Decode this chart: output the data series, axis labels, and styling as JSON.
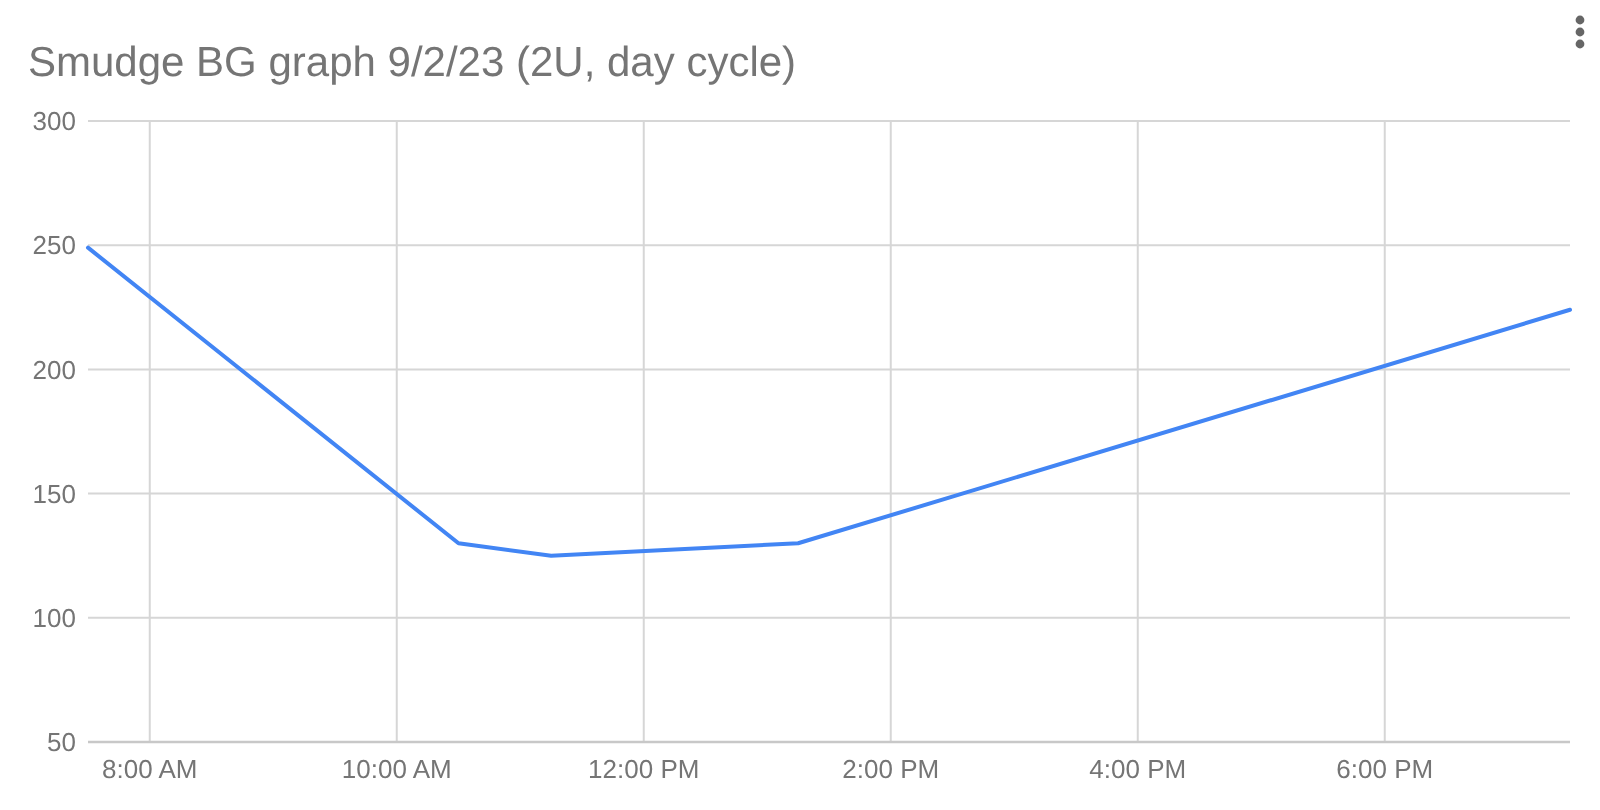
{
  "chart_data": {
    "type": "line",
    "title": "Smudge BG graph 9/2/23 (2U, day cycle)",
    "x": [
      7.5,
      10.5,
      11.25,
      13.25,
      19.5
    ],
    "series": [
      {
        "color": "#4285f4",
        "values": [
          249,
          130,
          125,
          130,
          224
        ]
      }
    ],
    "xlim": [
      7.5,
      19.5
    ],
    "xticks": [
      {
        "value": 8,
        "label": "8:00 AM"
      },
      {
        "value": 10,
        "label": "10:00 AM"
      },
      {
        "value": 12,
        "label": "12:00 PM"
      },
      {
        "value": 14,
        "label": "2:00 PM"
      },
      {
        "value": 16,
        "label": "4:00 PM"
      },
      {
        "value": 18,
        "label": "6:00 PM"
      }
    ],
    "ylim": [
      50,
      300
    ],
    "yticks": [
      50,
      100,
      150,
      200,
      250,
      300
    ],
    "grid": true
  }
}
